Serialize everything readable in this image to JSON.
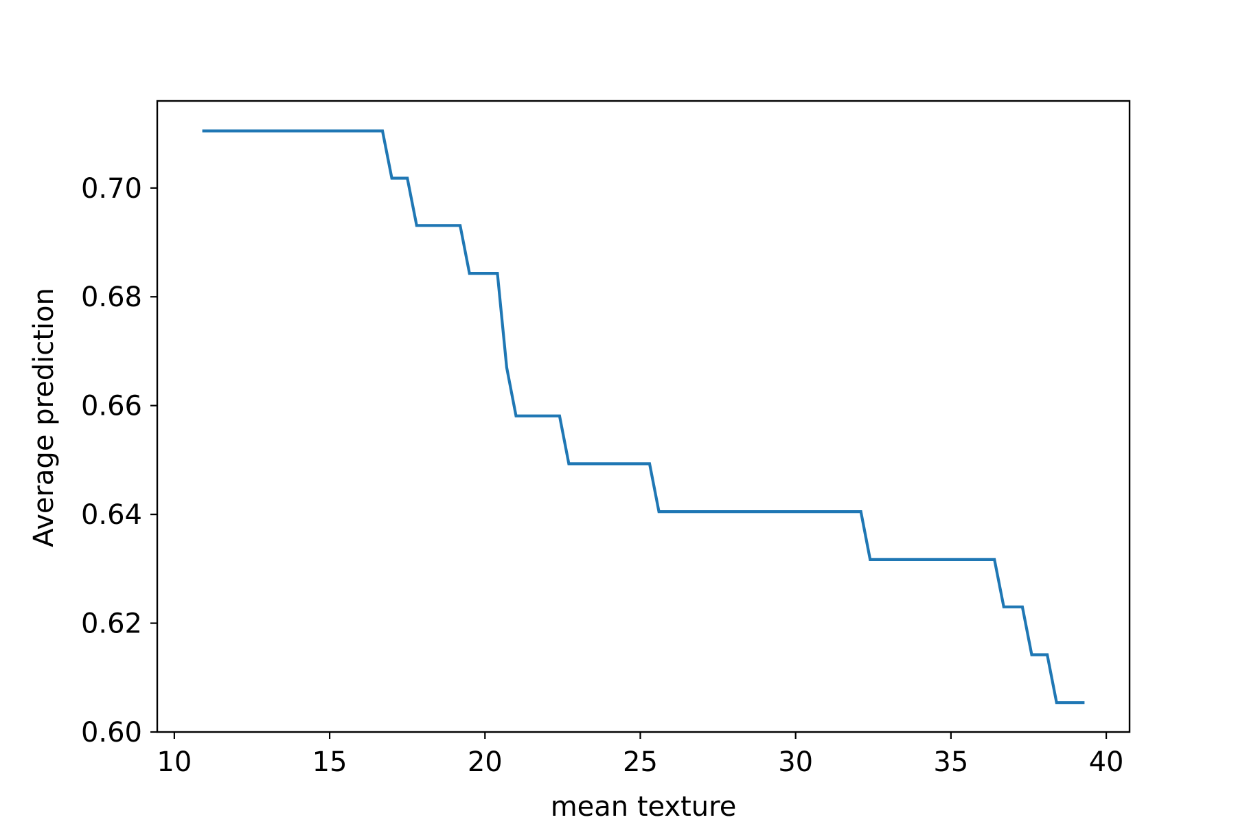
{
  "chart_data": {
    "type": "line",
    "title": "",
    "xlabel": "mean texture",
    "ylabel": "Average prediction",
    "xlim": [
      9.45,
      40.75
    ],
    "ylim": [
      0.6,
      0.716
    ],
    "grid": false,
    "xticks": [
      10,
      15,
      20,
      25,
      30,
      35,
      40
    ],
    "xtick_labels": [
      "10",
      "15",
      "20",
      "25",
      "30",
      "35",
      "40"
    ],
    "yticks": [
      0.6,
      0.62,
      0.64,
      0.66,
      0.68,
      0.7
    ],
    "ytick_labels": [
      "0.60",
      "0.62",
      "0.64",
      "0.66",
      "0.68",
      "0.70"
    ],
    "series": [
      {
        "color": "#1f77b4",
        "x": [
          10.9,
          16.7,
          17.0,
          17.5,
          17.8,
          19.2,
          19.5,
          20.4,
          20.7,
          21.0,
          22.4,
          22.7,
          25.3,
          25.6,
          32.1,
          32.4,
          36.4,
          36.7,
          37.3,
          37.6,
          38.1,
          38.4,
          39.3
        ],
        "y": [
          0.7105,
          0.7105,
          0.7018,
          0.7018,
          0.6931,
          0.6931,
          0.6843,
          0.6843,
          0.667,
          0.6581,
          0.6581,
          0.6493,
          0.6493,
          0.6405,
          0.6405,
          0.6317,
          0.6317,
          0.623,
          0.623,
          0.6142,
          0.6142,
          0.6054,
          0.6054
        ]
      }
    ]
  }
}
